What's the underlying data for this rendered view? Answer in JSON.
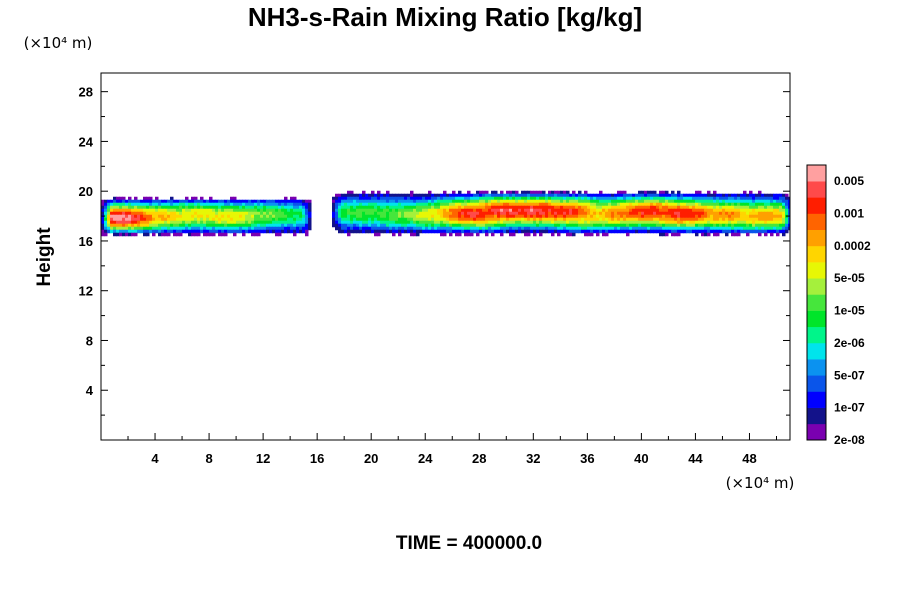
{
  "chart_data": {
    "type": "contour",
    "title": "NH3-s-Rain Mixing Ratio [kg/kg]",
    "ylabel": "Height",
    "x_unit": "(×10⁴ m)",
    "y_unit": "(×10⁴ m)",
    "time_label": "TIME = 400000.0",
    "xlim": [
      0,
      51
    ],
    "ylim": [
      0,
      29.5
    ],
    "x_ticks": [
      "4",
      "8",
      "12",
      "16",
      "20",
      "24",
      "28",
      "32",
      "36",
      "40",
      "44",
      "48"
    ],
    "y_ticks": [
      "4",
      "8",
      "12",
      "16",
      "20",
      "24",
      "28"
    ],
    "colorbar": {
      "labels": [
        "0.005",
        "0.001",
        "0.0002",
        "5e-05",
        "1e-05",
        "2e-06",
        "5e-07",
        "1e-07",
        "2e-08"
      ],
      "colors": [
        "#7a00b0",
        "#13128a",
        "#0000ff",
        "#0a55ea",
        "#0b92f0",
        "#00e4ec",
        "#00f58a",
        "#00e52a",
        "#46e63c",
        "#a5f03c",
        "#e7f705",
        "#ffd500",
        "#ffa000",
        "#ff6400",
        "#ff1e00",
        "#ff4a4a",
        "#ffa0a0"
      ]
    },
    "cloud_bands": [
      {
        "x_start": 0.0,
        "x_end": 15.5,
        "y_base": 16.6,
        "y_top": 19.6
      },
      {
        "x_start": 17.0,
        "x_end": 51.0,
        "y_base": 16.6,
        "y_top": 20.1
      }
    ],
    "peaks": [
      {
        "x": 1.2,
        "y": 17.7,
        "level": 14
      },
      {
        "x": 4.2,
        "y": 18.0,
        "level": 9
      },
      {
        "x": 7.0,
        "y": 18.4,
        "level": 8
      },
      {
        "x": 9.2,
        "y": 18.0,
        "level": 8
      },
      {
        "x": 11.8,
        "y": 18.4,
        "level": 6
      },
      {
        "x": 14.0,
        "y": 18.2,
        "level": 4
      },
      {
        "x": 19.5,
        "y": 18.4,
        "level": 5
      },
      {
        "x": 22.5,
        "y": 18.0,
        "level": 6
      },
      {
        "x": 25.0,
        "y": 18.0,
        "level": 8
      },
      {
        "x": 27.5,
        "y": 18.2,
        "level": 12
      },
      {
        "x": 30.0,
        "y": 18.8,
        "level": 13
      },
      {
        "x": 32.0,
        "y": 18.8,
        "level": 13
      },
      {
        "x": 34.0,
        "y": 18.6,
        "level": 12
      },
      {
        "x": 36.0,
        "y": 17.8,
        "level": 9
      },
      {
        "x": 38.3,
        "y": 18.2,
        "level": 10
      },
      {
        "x": 40.5,
        "y": 18.6,
        "level": 12
      },
      {
        "x": 43.0,
        "y": 18.2,
        "level": 12
      },
      {
        "x": 46.0,
        "y": 18.0,
        "level": 10
      },
      {
        "x": 49.0,
        "y": 17.8,
        "level": 10
      }
    ]
  }
}
